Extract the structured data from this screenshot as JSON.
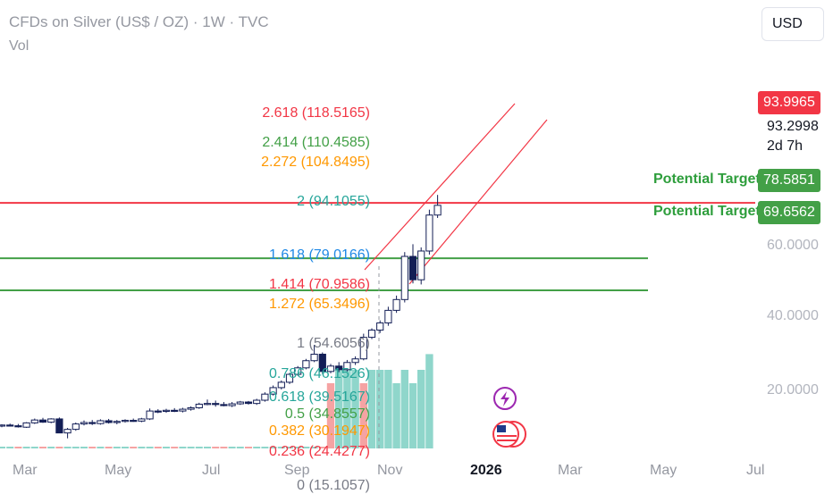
{
  "header": {
    "title": "CFDs on Silver (US$ / OZ) · 1W · TVC",
    "vol_label": "Vol"
  },
  "currency_button": "USD",
  "price_scale": {
    "last_price": "93.9965",
    "current_price": "93.2998",
    "countdown": "2d 7h",
    "target_1": "78.5851",
    "target_2": "69.6562",
    "ticks": [
      "60.0000",
      "40.0000",
      "20.0000"
    ]
  },
  "colors": {
    "red": "#f23645",
    "green": "#43a047",
    "orange": "#ff9800",
    "teal": "#26a69a",
    "navy": "#131e56",
    "vol_green": "#8fd6cb",
    "vol_red": "#f5a3a3"
  },
  "targets": [
    {
      "label": "Potential Target",
      "price": 78.5851
    },
    {
      "label": "Potential Target",
      "price": 69.6562
    }
  ],
  "resistance": {
    "price": 93.9965
  },
  "fib_levels": [
    {
      "label": "2.618 (118.5165)",
      "price": 118.5165,
      "color": "#f23645"
    },
    {
      "label": "2.414 (110.4585)",
      "price": 110.4585,
      "color": "#43a047"
    },
    {
      "label": "2.272 (104.8495)",
      "price": 104.8495,
      "color": "#ff9800"
    },
    {
      "label": "2 (94.1055)",
      "price": 94.1055,
      "color": "#26a69a"
    },
    {
      "label": "1.618 (79.0166)",
      "price": 79.0166,
      "color": "#1e88e5"
    },
    {
      "label": "1.414 (70.9586)",
      "price": 70.9586,
      "color": "#f23645"
    },
    {
      "label": "1.272 (65.3496)",
      "price": 65.3496,
      "color": "#ff9800"
    },
    {
      "label": "1 (54.6056)",
      "price": 54.6056,
      "color": "#787b86"
    },
    {
      "label": "0.786 (46.1526)",
      "price": 46.1526,
      "color": "#26a69a"
    },
    {
      "label": "0.618 (39.5167)",
      "price": 39.5167,
      "color": "#26a69a"
    },
    {
      "label": "0.5 (34.8557)",
      "price": 34.8557,
      "color": "#43a047"
    },
    {
      "label": "0.382 (30.1947)",
      "price": 30.1947,
      "color": "#ff9800"
    },
    {
      "label": "0.236 (24.4277)",
      "price": 24.4277,
      "color": "#f23645"
    },
    {
      "label": "0 (15.1057)",
      "price": 15.1057,
      "color": "#787b86"
    }
  ],
  "x_axis": [
    "Mar",
    "May",
    "Jul",
    "Sep",
    "Nov",
    "2026",
    "Mar",
    "May",
    "Jul"
  ],
  "chart_data": {
    "type": "candlestick",
    "title": "CFDs on Silver (US$ / OZ) · 1W · TVC",
    "ylim": [
      15,
      120
    ],
    "start_week": "2025-02-24",
    "candles": [
      [
        32.0,
        32.4,
        31.6,
        32.2
      ],
      [
        32.2,
        32.6,
        31.8,
        32.0
      ],
      [
        32.0,
        32.5,
        31.5,
        31.7
      ],
      [
        31.6,
        33.0,
        31.4,
        32.8
      ],
      [
        32.8,
        34.0,
        32.5,
        33.6
      ],
      [
        33.6,
        34.2,
        32.8,
        33.0
      ],
      [
        33.0,
        34.1,
        32.7,
        33.9
      ],
      [
        33.9,
        34.3,
        30.0,
        30.0
      ],
      [
        30.0,
        31.4,
        28.5,
        31.0
      ],
      [
        31.0,
        32.9,
        30.6,
        32.5
      ],
      [
        32.5,
        33.5,
        32.1,
        32.9
      ],
      [
        32.9,
        33.6,
        32.2,
        32.6
      ],
      [
        32.6,
        33.8,
        32.3,
        33.4
      ],
      [
        33.4,
        33.9,
        32.6,
        32.9
      ],
      [
        32.9,
        33.6,
        32.4,
        33.2
      ],
      [
        33.2,
        33.8,
        32.9,
        33.5
      ],
      [
        33.5,
        34.0,
        33.1,
        33.3
      ],
      [
        33.3,
        34.2,
        33.0,
        33.9
      ],
      [
        33.9,
        36.8,
        33.6,
        36.1
      ],
      [
        36.1,
        36.6,
        35.5,
        36.0
      ],
      [
        36.0,
        36.7,
        35.6,
        36.3
      ],
      [
        36.3,
        36.9,
        35.8,
        36.1
      ],
      [
        36.1,
        37.0,
        35.7,
        36.6
      ],
      [
        36.6,
        37.4,
        36.2,
        37.0
      ],
      [
        37.0,
        38.4,
        36.7,
        38.0
      ],
      [
        38.0,
        39.3,
        37.7,
        38.2
      ],
      [
        38.2,
        39.0,
        37.3,
        37.9
      ],
      [
        37.9,
        38.6,
        37.4,
        37.6
      ],
      [
        37.6,
        38.6,
        37.2,
        38.1
      ],
      [
        38.1,
        38.9,
        37.8,
        38.6
      ],
      [
        38.6,
        38.9,
        37.9,
        38.2
      ],
      [
        38.2,
        39.5,
        37.8,
        39.1
      ],
      [
        39.1,
        41.3,
        38.7,
        40.8
      ],
      [
        40.8,
        43.2,
        40.4,
        42.6
      ],
      [
        42.6,
        44.6,
        42.1,
        44.1
      ],
      [
        44.1,
        46.7,
        43.6,
        46.3
      ],
      [
        46.3,
        48.6,
        45.9,
        48.1
      ],
      [
        48.1,
        50.6,
        47.7,
        50.1
      ],
      [
        50.1,
        54.5,
        49.7,
        51.9
      ],
      [
        51.9,
        52.4,
        46.4,
        47.1
      ],
      [
        47.1,
        49.2,
        46.6,
        48.6
      ],
      [
        48.6,
        49.7,
        46.9,
        47.6
      ],
      [
        47.6,
        50.3,
        47.1,
        49.6
      ],
      [
        49.6,
        51.3,
        48.9,
        50.6
      ],
      [
        50.6,
        57.6,
        50.2,
        56.6
      ],
      [
        56.6,
        59.1,
        56.1,
        58.6
      ],
      [
        58.6,
        61.3,
        57.8,
        60.6
      ],
      [
        60.6,
        65.1,
        59.8,
        64.1
      ],
      [
        64.1,
        68.2,
        63.4,
        67.1
      ],
      [
        67.1,
        80.3,
        66.3,
        79.1
      ],
      [
        79.1,
        82.5,
        71.6,
        72.6
      ],
      [
        72.6,
        81.6,
        71.3,
        80.6
      ],
      [
        80.6,
        92.1,
        79.6,
        90.6
      ],
      [
        90.6,
        96.2,
        89.8,
        93.3
      ]
    ],
    "volume_ratio": [
      0.0,
      0.0,
      0.0,
      0.0,
      0.0,
      0.0,
      0.0,
      0.0,
      0.0,
      0.0,
      0.0,
      0.0,
      0.0,
      0.0,
      0.0,
      0.0,
      0.0,
      0.0,
      0.0,
      0.0,
      0.0,
      0.0,
      0.0,
      0.0,
      0.0,
      0.0,
      0.0,
      0.0,
      0.0,
      0.0,
      0.0,
      0.0,
      0.0,
      0.0,
      0.0,
      0.0,
      0.0,
      0.0,
      0.0,
      0.0,
      0.83,
      1.0,
      1.0,
      1.0,
      0.83,
      1.0,
      1.0,
      1.0,
      0.83,
      1.0,
      0.83,
      1.0,
      1.2,
      0.0
    ],
    "volume_up": [
      true,
      true,
      false,
      true,
      true,
      false,
      true,
      false,
      true,
      true,
      true,
      false,
      true,
      false,
      true,
      true,
      false,
      true,
      true,
      false,
      true,
      false,
      true,
      true,
      true,
      true,
      false,
      false,
      true,
      true,
      false,
      true,
      true,
      true,
      true,
      true,
      true,
      true,
      true,
      false,
      false,
      true,
      true,
      true,
      false,
      true,
      true,
      true,
      true,
      true,
      true,
      true,
      true,
      true
    ]
  }
}
